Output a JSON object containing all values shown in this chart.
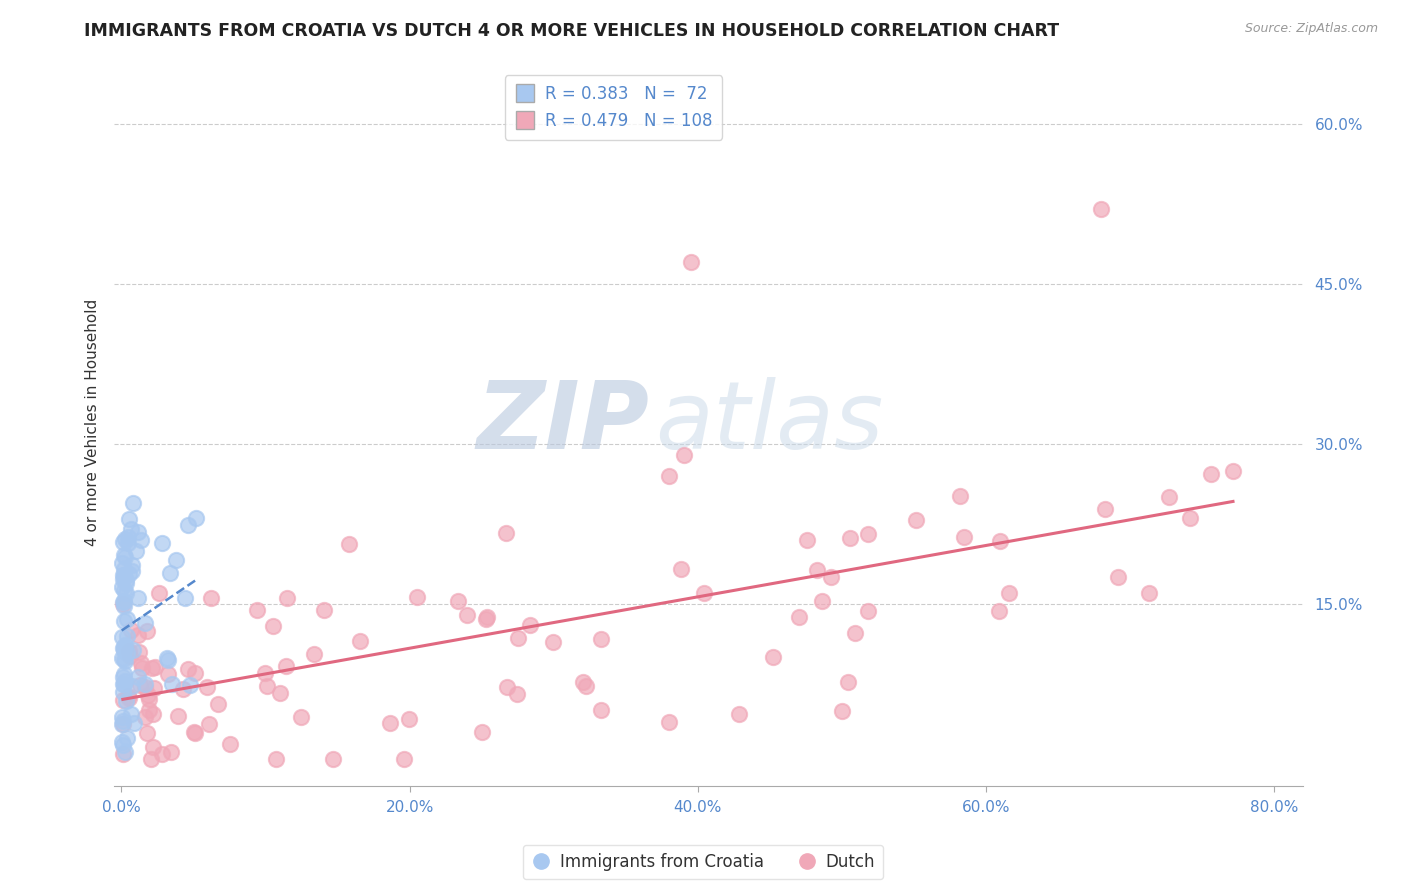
{
  "title": "IMMIGRANTS FROM CROATIA VS DUTCH 4 OR MORE VEHICLES IN HOUSEHOLD CORRELATION CHART",
  "source": "Source: ZipAtlas.com",
  "ylabel": "4 or more Vehicles in Household",
  "xlim": [
    -0.005,
    0.82
  ],
  "ylim": [
    -0.02,
    0.66
  ],
  "xtick_labels": [
    "0.0%",
    "20.0%",
    "40.0%",
    "60.0%",
    "80.0%"
  ],
  "xtick_vals": [
    0.0,
    0.2,
    0.4,
    0.6,
    0.8
  ],
  "ytick_labels": [
    "15.0%",
    "30.0%",
    "45.0%",
    "60.0%"
  ],
  "ytick_vals": [
    0.15,
    0.3,
    0.45,
    0.6
  ],
  "legend_labels": [
    "Immigrants from Croatia",
    "Dutch"
  ],
  "legend_R": [
    0.383,
    0.479
  ],
  "legend_N": [
    72,
    108
  ],
  "color_croatia": "#a8c8f0",
  "color_dutch": "#f0a8b8",
  "trendline_color_croatia": "#5588cc",
  "trendline_color_dutch": "#e06880",
  "background_color": "#ffffff",
  "tick_color": "#5588cc",
  "grid_color": "#cccccc",
  "watermark_color": "#ccd8e8"
}
